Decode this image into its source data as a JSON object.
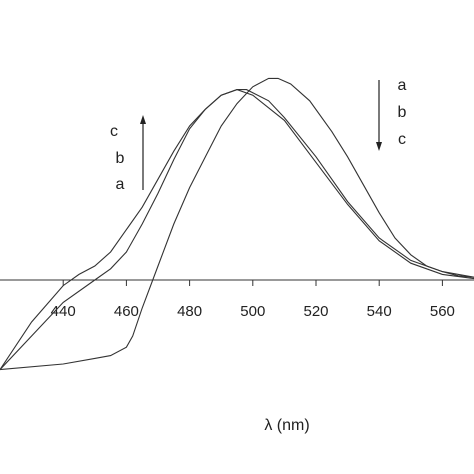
{
  "chart_data": {
    "type": "line",
    "title": "",
    "xlabel": "λ (nm)",
    "ylabel": "",
    "xlim": [
      420,
      570
    ],
    "ylim": [
      -0.35,
      0.75
    ],
    "x_ticks": [
      440,
      460,
      480,
      500,
      520,
      540,
      560
    ],
    "grid": false,
    "legend": "none",
    "series": [
      {
        "name": "a",
        "x": [
          420,
          440,
          450,
          455,
          460,
          462,
          465,
          470,
          475,
          480,
          485,
          490,
          495,
          500,
          505,
          508,
          512,
          518,
          525,
          530,
          535,
          540,
          545,
          550,
          555,
          560,
          565,
          570
        ],
        "y": [
          -0.32,
          -0.3,
          -0.28,
          -0.27,
          -0.24,
          -0.2,
          -0.1,
          0.05,
          0.2,
          0.33,
          0.44,
          0.55,
          0.63,
          0.69,
          0.72,
          0.72,
          0.7,
          0.64,
          0.53,
          0.44,
          0.34,
          0.24,
          0.15,
          0.09,
          0.05,
          0.03,
          0.015,
          0.01
        ]
      },
      {
        "name": "b",
        "x": [
          420,
          430,
          440,
          450,
          455,
          460,
          465,
          470,
          475,
          480,
          485,
          490,
          495,
          498,
          505,
          510,
          520,
          530,
          540,
          550,
          560,
          570
        ],
        "y": [
          -0.32,
          -0.2,
          -0.08,
          0.0,
          0.04,
          0.1,
          0.2,
          0.31,
          0.43,
          0.54,
          0.61,
          0.66,
          0.68,
          0.68,
          0.64,
          0.58,
          0.44,
          0.28,
          0.15,
          0.07,
          0.03,
          0.01
        ]
      },
      {
        "name": "c",
        "x": [
          420,
          430,
          440,
          445,
          450,
          455,
          460,
          465,
          470,
          475,
          480,
          485,
          490,
          495,
          500,
          510,
          520,
          530,
          540,
          550,
          560,
          570
        ],
        "y": [
          -0.32,
          -0.15,
          -0.02,
          0.02,
          0.05,
          0.1,
          0.18,
          0.26,
          0.36,
          0.46,
          0.55,
          0.61,
          0.66,
          0.68,
          0.66,
          0.57,
          0.42,
          0.27,
          0.14,
          0.06,
          0.02,
          0.005
        ]
      }
    ],
    "annotations": {
      "left": {
        "labels": [
          "c",
          "b",
          "a"
        ],
        "arrow": "up"
      },
      "right": {
        "labels": [
          "a",
          "b",
          "c"
        ],
        "arrow": "down"
      }
    }
  }
}
